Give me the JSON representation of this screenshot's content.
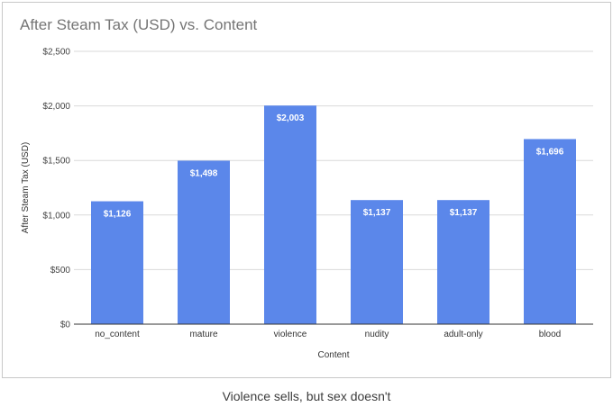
{
  "caption": "Violence sells, but sex doesn't",
  "chart_data": {
    "type": "bar",
    "title": "After Steam Tax (USD) vs. Content",
    "xlabel": "Content",
    "ylabel": "After Steam Tax (USD)",
    "categories": [
      "no_content",
      "mature",
      "violence",
      "nudity",
      "adult-only",
      "blood"
    ],
    "values": [
      1126,
      1498,
      2003,
      1137,
      1137,
      1696
    ],
    "data_labels": [
      "$1,126",
      "$1,498",
      "$2,003",
      "$1,137",
      "$1,137",
      "$1,696"
    ],
    "ylim": [
      0,
      2500
    ],
    "y_ticks": [
      0,
      500,
      1000,
      1500,
      2000,
      2500
    ],
    "y_tick_labels": [
      "$0",
      "$500",
      "$1,000",
      "$1,500",
      "$2,000",
      "$2,500"
    ],
    "grid": true,
    "legend": "none",
    "bar_color": "#5b87ea",
    "grid_color": "#d9d9d9",
    "axis_color": "#333333"
  }
}
